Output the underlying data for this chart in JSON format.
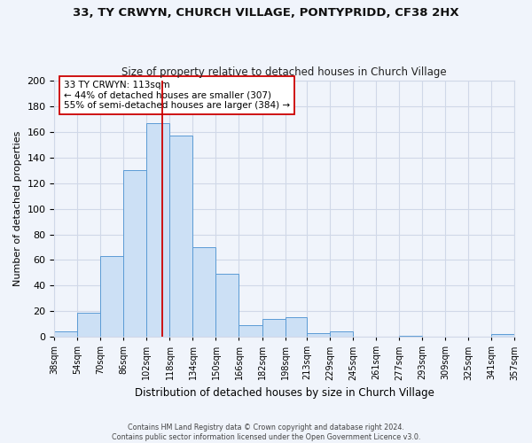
{
  "title1": "33, TY CRWYN, CHURCH VILLAGE, PONTYPRIDD, CF38 2HX",
  "title2": "Size of property relative to detached houses in Church Village",
  "xlabel": "Distribution of detached houses by size in Church Village",
  "ylabel": "Number of detached properties",
  "bar_color": "#cce0f5",
  "bar_edge_color": "#5b9bd5",
  "grid_color": "#d0d8e8",
  "background_color": "#f0f4fb",
  "bin_edges": [
    38,
    54,
    70,
    86,
    102,
    118,
    134,
    150,
    166,
    182,
    198,
    213,
    229,
    245,
    261,
    277,
    293,
    309,
    325,
    341,
    357
  ],
  "bin_labels": [
    "38sqm",
    "54sqm",
    "70sqm",
    "86sqm",
    "102sqm",
    "118sqm",
    "134sqm",
    "150sqm",
    "166sqm",
    "182sqm",
    "198sqm",
    "213sqm",
    "229sqm",
    "245sqm",
    "261sqm",
    "277sqm",
    "293sqm",
    "309sqm",
    "325sqm",
    "341sqm",
    "357sqm"
  ],
  "counts": [
    4,
    19,
    63,
    130,
    167,
    157,
    70,
    49,
    9,
    14,
    15,
    3,
    4,
    0,
    0,
    1,
    0,
    0,
    0,
    2
  ],
  "property_value": 113,
  "vline_color": "#cc0000",
  "annotation_line1": "33 TY CRWYN: 113sqm",
  "annotation_line2": "← 44% of detached houses are smaller (307)",
  "annotation_line3": "55% of semi-detached houses are larger (384) →",
  "annotation_box_color": "#ffffff",
  "annotation_box_edge_color": "#cc0000",
  "ylim": [
    0,
    200
  ],
  "yticks": [
    0,
    20,
    40,
    60,
    80,
    100,
    120,
    140,
    160,
    180,
    200
  ],
  "footer1": "Contains HM Land Registry data © Crown copyright and database right 2024.",
  "footer2": "Contains public sector information licensed under the Open Government Licence v3.0."
}
